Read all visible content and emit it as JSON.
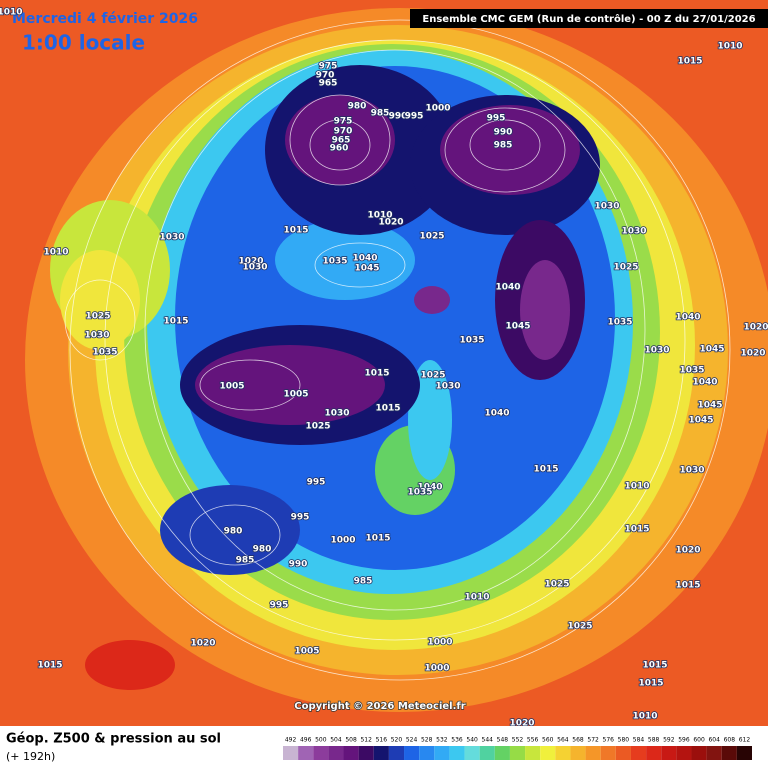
{
  "header": {
    "date": "Mercredi 4 février 2026",
    "time": "1:00 locale",
    "model": "Ensemble CMC GEM  (Run de contrôle)  -  00 Z du 27/01/2026"
  },
  "footer": {
    "field": "Géop. Z500 & pression au sol",
    "lead": "(+ 192h)",
    "copyright": "Copyright © 2026 Meteociel.fr"
  },
  "scale": {
    "values": [
      492,
      496,
      500,
      504,
      508,
      512,
      516,
      520,
      524,
      528,
      532,
      536,
      540,
      544,
      548,
      552,
      556,
      560,
      564,
      568,
      572,
      576,
      580,
      584,
      588,
      592,
      596,
      600,
      604,
      608,
      612
    ],
    "colors": [
      "#c8b4d2",
      "#a064b4",
      "#8c3c9c",
      "#78288c",
      "#64147c",
      "#3c0a64",
      "#14146e",
      "#1e3cb4",
      "#1e64e6",
      "#2888f0",
      "#32aaf5",
      "#3cc8f0",
      "#64dcdc",
      "#50d2a0",
      "#64d264",
      "#96dc46",
      "#c8e63c",
      "#f0f03c",
      "#f5d232",
      "#f5b42d",
      "#f59628",
      "#f07828",
      "#eb5a23",
      "#e63c1e",
      "#dc2819",
      "#c81914",
      "#b41410",
      "#9b0f0c",
      "#821410",
      "#5a0a08",
      "#280404"
    ]
  },
  "pressure_labels": [
    975,
    970,
    965,
    980,
    985,
    990,
    995,
    1000,
    975,
    970,
    965,
    960,
    995,
    990,
    985,
    1010,
    1015,
    1010,
    1030,
    1030,
    1025,
    1010,
    1020,
    1015,
    1025,
    1030,
    1010,
    1035,
    1040,
    1045,
    1020,
    1030,
    1040,
    1045,
    1035,
    1040,
    1020,
    1025,
    1015,
    1030,
    1035,
    1035,
    1030,
    1045,
    1020,
    1035,
    1040,
    1005,
    1015,
    1025,
    1030,
    1005,
    1045,
    1045,
    1030,
    1015,
    1040,
    1025,
    1015,
    1030,
    995,
    1040,
    1035,
    1010,
    995,
    980,
    980,
    985,
    1015,
    1000,
    1015,
    990,
    1020,
    1025,
    1015,
    985,
    995,
    1010,
    1025,
    1020,
    1005,
    1000,
    1015,
    1015,
    1000,
    1015,
    1010,
    1020
  ]
}
